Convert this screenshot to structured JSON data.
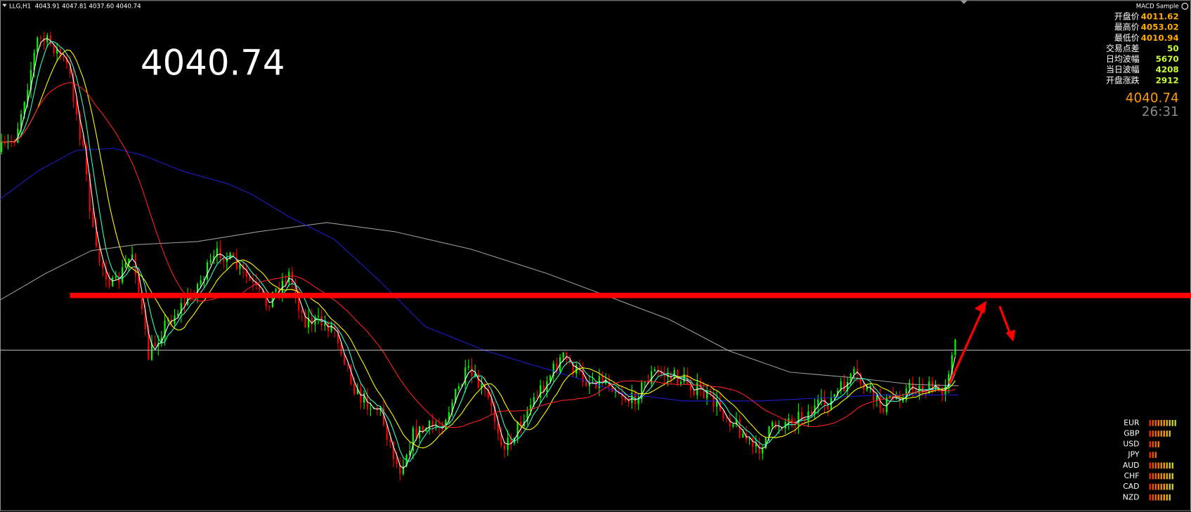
{
  "header": {
    "symbol": "LLG,H1",
    "ohlc": "4043.91 4047.81 4037.60 4040.74",
    "indicator": "MACD Sample"
  },
  "big_price": "4040.74",
  "info": {
    "rows": [
      {
        "label": "开盘价",
        "value": "4011.62"
      },
      {
        "label": "最高价",
        "value": "4053.02"
      },
      {
        "label": "最低价",
        "value": "4010.94"
      },
      {
        "label": "交易点差",
        "value": "50"
      },
      {
        "label": "日均波幅",
        "value": "5670"
      },
      {
        "label": "当日波幅",
        "value": "4208"
      },
      {
        "label": "开盘涨跌",
        "value": "2912"
      }
    ]
  },
  "price": "4040.74",
  "timer": "26:31",
  "currencies": [
    "EUR",
    "GBP",
    "USD",
    "JPY",
    "AUD",
    "CHF",
    "CAD",
    "NZD"
  ]
}
